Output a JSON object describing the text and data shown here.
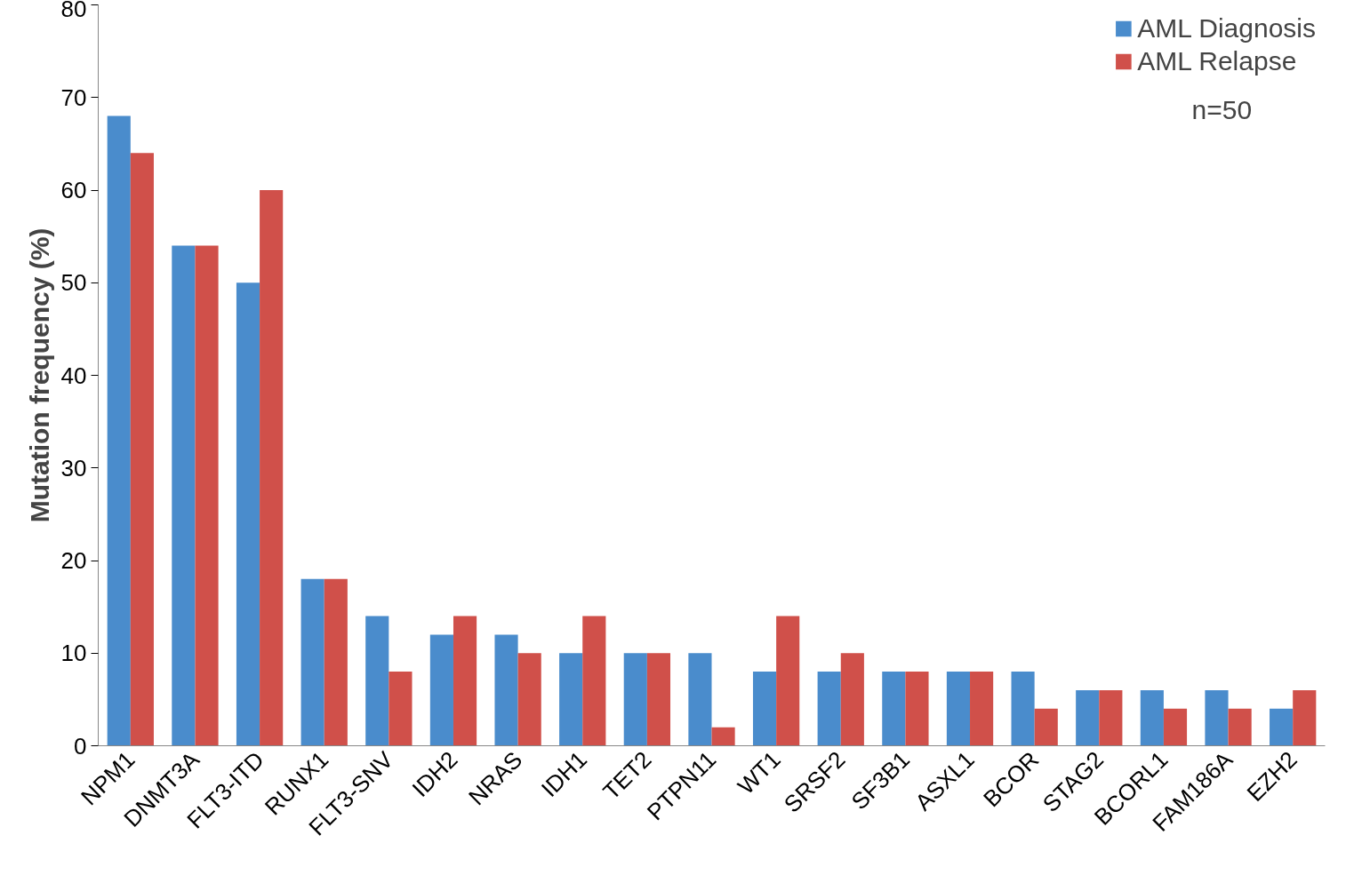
{
  "chart_data": {
    "type": "bar",
    "ylabel": "Mutation frequency (%)",
    "categories": [
      "NPM1",
      "DNMT3A",
      "FLT3-ITD",
      "RUNX1",
      "FLT3-SNV",
      "IDH2",
      "NRAS",
      "IDH1",
      "TET2",
      "PTPN11",
      "WT1",
      "SRSF2",
      "SF3B1",
      "ASXL1",
      "BCOR",
      "STAG2",
      "BCORL1",
      "FAM186A",
      "EZH2"
    ],
    "series": [
      {
        "name": "AML Diagnosis",
        "color": "#4a8ccc",
        "values": [
          68,
          54,
          50,
          18,
          14,
          12,
          12,
          10,
          10,
          10,
          8,
          8,
          8,
          8,
          8,
          6,
          6,
          6,
          4
        ]
      },
      {
        "name": "AML Relapse",
        "color": "#d0504a",
        "values": [
          64,
          54,
          60,
          18,
          8,
          14,
          10,
          14,
          10,
          2,
          14,
          10,
          8,
          8,
          4,
          6,
          4,
          4,
          6
        ]
      }
    ],
    "ylim": [
      0,
      80
    ],
    "yticks": [
      0,
      10,
      20,
      30,
      40,
      50,
      60,
      70,
      80
    ],
    "grid": false,
    "legend": "top right",
    "annotations": [
      "n=50"
    ]
  }
}
